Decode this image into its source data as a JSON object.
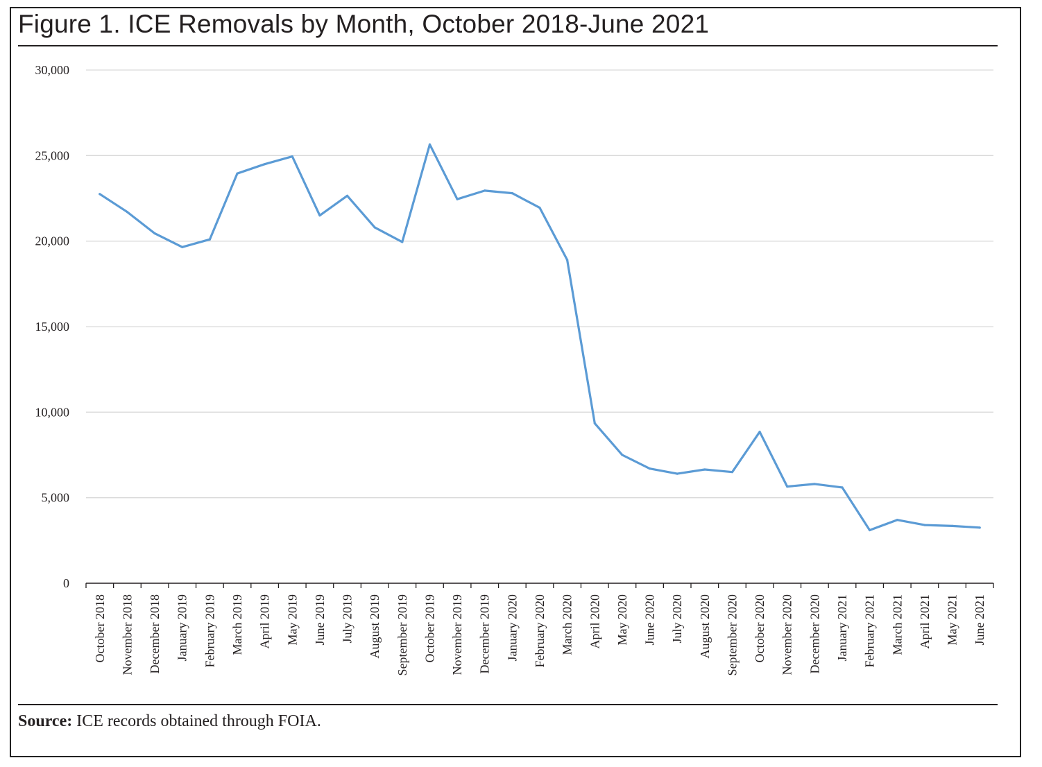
{
  "figure": {
    "title": "Figure 1. ICE Removals by Month, October 2018-June 2021",
    "source_label": "Source:",
    "source_text": " ICE records obtained through FOIA."
  },
  "chart_data": {
    "type": "line",
    "title": "Figure 1. ICE Removals by Month, October 2018-June 2021",
    "xlabel": "",
    "ylabel": "",
    "ylim": [
      0,
      30000
    ],
    "yticks": [
      0,
      5000,
      10000,
      15000,
      20000,
      25000,
      30000
    ],
    "ytick_labels": [
      "0",
      "5,000",
      "10,000",
      "15,000",
      "20,000",
      "25,000",
      "30,000"
    ],
    "grid": true,
    "legend": "none",
    "line_color": "#5b9bd5",
    "categories": [
      "October 2018",
      "November 2018",
      "December 2018",
      "January 2019",
      "February 2019",
      "March 2019",
      "April 2019",
      "May 2019",
      "June 2019",
      "July 2019",
      "August 2019",
      "September 2019",
      "October 2019",
      "November 2019",
      "December 2019",
      "January 2020",
      "February 2020",
      "March 2020",
      "April 2020",
      "May 2020",
      "June 2020",
      "July 2020",
      "August 2020",
      "September 2020",
      "October 2020",
      "November 2020",
      "December 2020",
      "January 2021",
      "February 2021",
      "March 2021",
      "April 2021",
      "May 2021",
      "June 2021"
    ],
    "series": [
      {
        "values": [
          22750,
          21700,
          20450,
          19650,
          20100,
          23950,
          24500,
          24950,
          21500,
          22650,
          20800,
          19950,
          25650,
          22450,
          22950,
          22800,
          21950,
          18900,
          9350,
          7500,
          6700,
          6400,
          6650,
          6500,
          8850,
          5650,
          5800,
          5600,
          3100,
          3700,
          3400,
          3350,
          3250
        ]
      }
    ]
  }
}
